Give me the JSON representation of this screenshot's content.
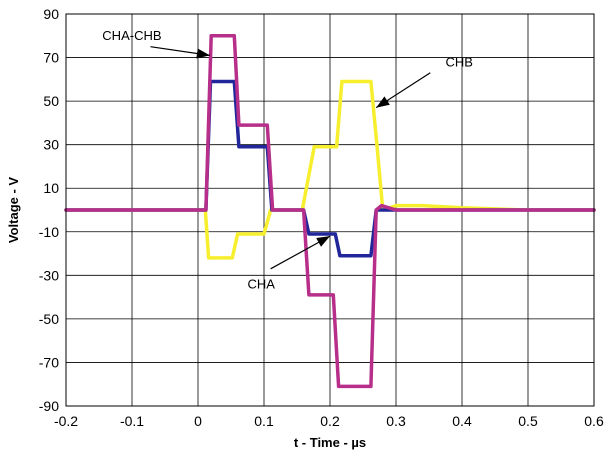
{
  "chart_data": {
    "type": "line",
    "xlabel": "t - Time - µs",
    "ylabel": "Voltage - V",
    "xlim": [
      -0.2,
      0.6
    ],
    "ylim": [
      -90,
      90
    ],
    "grid": true,
    "x_ticks": [
      -0.2,
      -0.1,
      0,
      0.1,
      0.2,
      0.3,
      0.4,
      0.5,
      0.6
    ],
    "x_tick_labels": [
      "-0.2",
      "-0.1",
      "0",
      "0.1",
      "0.2",
      "0.3",
      "0.4",
      "0.5",
      "0.6"
    ],
    "y_ticks": [
      90,
      70,
      50,
      30,
      10,
      -10,
      -30,
      -50,
      -70,
      -90
    ],
    "y_tick_labels": [
      "90",
      "70",
      "50",
      "30",
      "10",
      "-10",
      "-30",
      "-50",
      "-70",
      "-90"
    ],
    "series": [
      {
        "name": "CHB",
        "color": "#f7ef2e",
        "x": [
          -0.2,
          0.011,
          0.016,
          0.052,
          0.06,
          0.1,
          0.11,
          0.15,
          0.158,
          0.176,
          0.183,
          0.21,
          0.218,
          0.255,
          0.262,
          0.271,
          0.28,
          0.3,
          0.34,
          0.4,
          0.5,
          0.6
        ],
        "y": [
          0,
          0,
          -22,
          -22,
          -11,
          -11,
          0,
          0,
          0,
          29,
          29,
          29,
          59,
          59,
          59,
          30,
          0,
          2,
          2,
          1,
          0,
          0
        ]
      },
      {
        "name": "CHA",
        "color": "#21279a",
        "x": [
          -0.2,
          0.012,
          0.019,
          0.055,
          0.062,
          0.098,
          0.105,
          0.112,
          0.118,
          0.16,
          0.168,
          0.208,
          0.215,
          0.255,
          0.262,
          0.27,
          0.3,
          0.4,
          0.5,
          0.6
        ],
        "y": [
          0,
          0,
          59,
          59,
          29,
          29,
          29,
          0,
          0,
          0,
          -11,
          -11,
          -21,
          -21,
          -21,
          0,
          0,
          0,
          0,
          0
        ]
      },
      {
        "name": "CHA-CHB",
        "color": "#b72f8a",
        "x": [
          -0.2,
          0.012,
          0.02,
          0.055,
          0.062,
          0.098,
          0.105,
          0.113,
          0.12,
          0.16,
          0.168,
          0.205,
          0.213,
          0.255,
          0.262,
          0.27,
          0.278,
          0.3,
          0.4,
          0.5,
          0.6
        ],
        "y": [
          0,
          0,
          80,
          80,
          39,
          39,
          39,
          0,
          0,
          0,
          -39,
          -39,
          -81,
          -81,
          -81,
          0,
          2,
          0,
          0,
          0,
          0
        ]
      }
    ],
    "annotations": [
      {
        "text": "CHA-CHB",
        "target": "CHA-CHB",
        "text_at": [
          -0.145,
          78
        ],
        "arrow_from": [
          -0.072,
          75
        ],
        "arrow_to": [
          0.018,
          71
        ]
      },
      {
        "text": "CHB",
        "target": "CHB",
        "text_at": [
          0.375,
          66
        ],
        "arrow_from": [
          0.352,
          63
        ],
        "arrow_to": [
          0.27,
          47
        ]
      },
      {
        "text": "CHA",
        "target": "CHA",
        "text_at": [
          0.075,
          -36
        ],
        "arrow_from": [
          0.11,
          -27
        ],
        "arrow_to": [
          0.2,
          -12
        ]
      }
    ]
  }
}
